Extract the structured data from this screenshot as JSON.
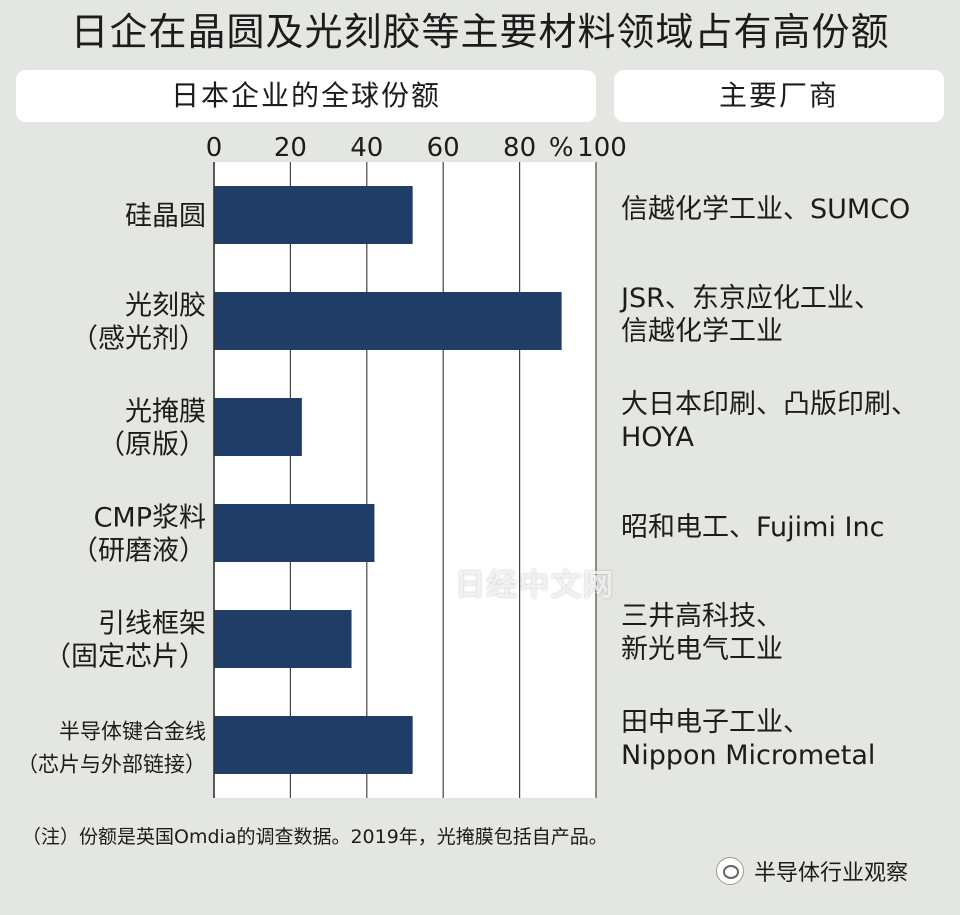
{
  "title": "日企在晶圆及光刻胶等主要材料领域占有高份额",
  "headers": {
    "left": "日本企业的全球份额",
    "right": "主要厂商"
  },
  "chart_data": {
    "type": "bar",
    "orientation": "horizontal",
    "categories": [
      [
        "硅晶圆"
      ],
      [
        "光刻胶",
        "（感光剂）"
      ],
      [
        "光掩膜",
        "（原版）"
      ],
      [
        "CMP浆料",
        "（研磨液）"
      ],
      [
        "引线框架",
        "（固定芯片）"
      ],
      [
        "半导体键合金线",
        "（芯片与外部链接）"
      ]
    ],
    "values": [
      52,
      91,
      23,
      42,
      36,
      52
    ],
    "xlim": [
      0,
      100
    ],
    "xticks": [
      "0",
      "20",
      "40",
      "60",
      "80",
      "100"
    ],
    "x_unit": "%",
    "grid": true,
    "bar_color": "#1f3d66"
  },
  "manufacturers": [
    [
      "信越化学工业、SUMCO"
    ],
    [
      "JSR、东京应化工业、",
      "信越化学工业"
    ],
    [
      "大日本印刷、凸版印刷、",
      "HOYA"
    ],
    [
      "昭和电工、Fujimi Inc"
    ],
    [
      "三井高科技、",
      "新光电气工业"
    ],
    [
      "田中电子工业、",
      "Nippon Micrometal"
    ]
  ],
  "footnote": "（注）份额是英国Omdia的调查数据。2019年，光掩膜包括自产品。",
  "watermark": "日经中文网",
  "brand": "半导体行业观察"
}
